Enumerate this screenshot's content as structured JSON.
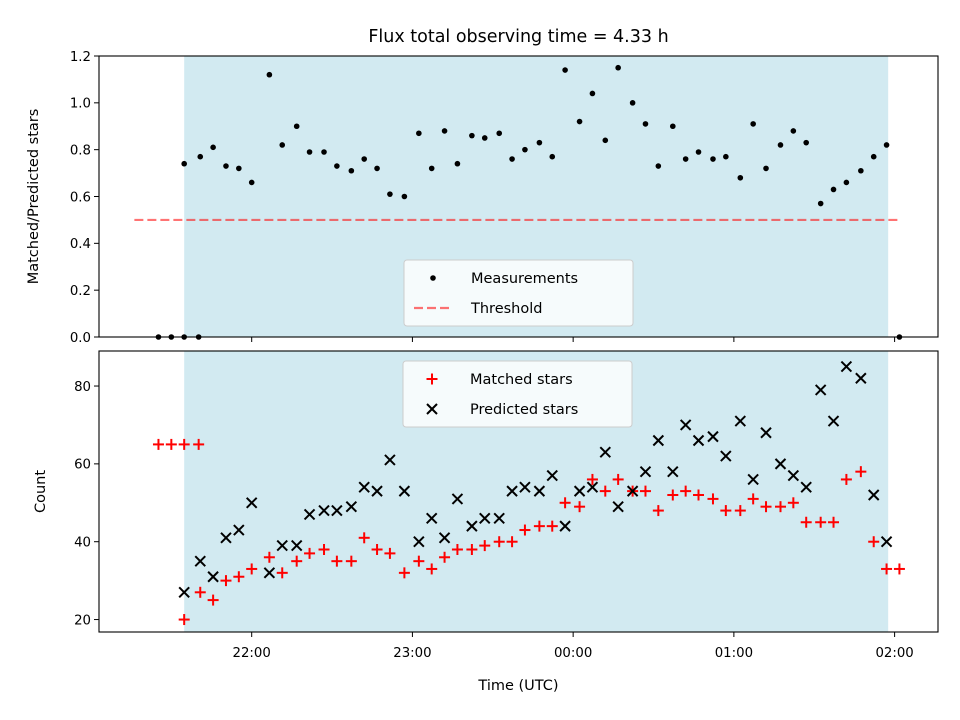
{
  "chart_data": {
    "title": "Flux total observing time = 4.33 h",
    "xlabel": "Time (UTC)",
    "x_ticks": [
      "22:00",
      "23:00",
      "00:00",
      "01:00",
      "02:00"
    ],
    "x_range_hours": [
      21.05,
      26.27
    ],
    "observing_window_hours": [
      21.58,
      25.96
    ],
    "colors": {
      "window": "#add8e6",
      "measurements": "#000000",
      "threshold": "#ff0000",
      "matched": "#ff0000",
      "predicted": "#000000"
    },
    "panels": [
      {
        "type": "scatter",
        "ylabel": "Matched/Predicted stars",
        "ylim": [
          0,
          1.2
        ],
        "y_ticks": [
          "0.0",
          "0.2",
          "0.4",
          "0.6",
          "0.8",
          "1.0",
          "1.2"
        ],
        "legend_position": "lower-center",
        "series": [
          {
            "name": "Measurements",
            "marker": "dot",
            "x": [
              21.42,
              21.5,
              21.58,
              21.67,
              21.58,
              21.68,
              21.76,
              21.84,
              21.92,
              22.0,
              22.11,
              22.19,
              22.28,
              22.36,
              22.45,
              22.53,
              22.62,
              22.7,
              22.78,
              22.86,
              22.95,
              23.04,
              23.12,
              23.2,
              23.28,
              23.37,
              23.45,
              23.54,
              23.62,
              23.7,
              23.79,
              23.87,
              23.95,
              24.04,
              24.12,
              24.2,
              24.28,
              24.37,
              24.45,
              24.53,
              24.62,
              24.7,
              24.78,
              24.87,
              24.95,
              25.04,
              25.12,
              25.2,
              25.29,
              25.37,
              25.45,
              25.54,
              25.62,
              25.7,
              25.79,
              25.87,
              25.95,
              26.03
            ],
            "y": [
              0,
              0,
              0,
              0,
              0.74,
              0.77,
              0.81,
              0.73,
              0.72,
              0.66,
              1.12,
              0.82,
              0.9,
              0.79,
              0.79,
              0.73,
              0.71,
              0.76,
              0.72,
              0.61,
              0.6,
              0.87,
              0.72,
              0.88,
              0.74,
              0.86,
              0.85,
              0.87,
              0.76,
              0.8,
              0.83,
              0.77,
              1.14,
              0.92,
              1.04,
              0.84,
              1.15,
              1.0,
              0.91,
              0.73,
              0.9,
              0.76,
              0.79,
              0.76,
              0.77,
              0.68,
              0.91,
              0.72,
              0.82,
              0.88,
              0.83,
              0.57,
              0.63,
              0.66,
              0.71,
              0.77,
              0.82,
              0
            ]
          },
          {
            "name": "Threshold",
            "type": "line",
            "style": "dashed",
            "x": [
              21.27,
              26.02
            ],
            "y": [
              0.5,
              0.5
            ]
          }
        ]
      },
      {
        "type": "scatter",
        "ylabel": "Count",
        "ylim": [
          16.8,
          89
        ],
        "y_ticks": [
          "20",
          "40",
          "60",
          "80"
        ],
        "legend_position": "upper-center",
        "series": [
          {
            "name": "Matched stars",
            "marker": "plus",
            "x": [
              21.42,
              21.5,
              21.58,
              21.67,
              21.58,
              21.68,
              21.76,
              21.84,
              21.92,
              22.0,
              22.11,
              22.19,
              22.28,
              22.36,
              22.45,
              22.53,
              22.62,
              22.7,
              22.78,
              22.86,
              22.95,
              23.04,
              23.12,
              23.2,
              23.28,
              23.37,
              23.45,
              23.54,
              23.62,
              23.7,
              23.79,
              23.87,
              23.95,
              24.04,
              24.12,
              24.2,
              24.28,
              24.37,
              24.45,
              24.53,
              24.62,
              24.7,
              24.78,
              24.87,
              24.95,
              25.04,
              25.12,
              25.2,
              25.29,
              25.37,
              25.45,
              25.54,
              25.62,
              25.7,
              25.79,
              25.87,
              25.95,
              26.03
            ],
            "y": [
              65,
              65,
              65,
              65,
              20,
              27,
              25,
              30,
              31,
              33,
              36,
              32,
              35,
              37,
              38,
              35,
              35,
              41,
              38,
              37,
              32,
              35,
              33,
              36,
              38,
              38,
              39,
              40,
              40,
              43,
              44,
              44,
              50,
              49,
              56,
              53,
              56,
              53,
              53,
              48,
              52,
              53,
              52,
              51,
              48,
              48,
              51,
              49,
              49,
              50,
              45,
              45,
              45,
              56,
              58,
              40,
              33,
              33
            ]
          },
          {
            "name": "Predicted stars",
            "marker": "x",
            "x": [
              21.58,
              21.68,
              21.76,
              21.84,
              21.92,
              22.0,
              22.11,
              22.19,
              22.28,
              22.36,
              22.45,
              22.53,
              22.62,
              22.7,
              22.78,
              22.86,
              22.95,
              23.04,
              23.12,
              23.2,
              23.28,
              23.37,
              23.45,
              23.54,
              23.62,
              23.7,
              23.79,
              23.87,
              23.95,
              24.04,
              24.12,
              24.2,
              24.28,
              24.37,
              24.45,
              24.53,
              24.62,
              24.7,
              24.78,
              24.87,
              24.95,
              25.04,
              25.12,
              25.2,
              25.29,
              25.37,
              25.45,
              25.54,
              25.62,
              25.7,
              25.79,
              25.87,
              25.95
            ],
            "y": [
              27,
              35,
              31,
              41,
              43,
              50,
              32,
              39,
              39,
              47,
              48,
              48,
              49,
              54,
              53,
              61,
              53,
              40,
              46,
              41,
              51,
              44,
              46,
              46,
              53,
              54,
              53,
              57,
              44,
              53,
              54,
              63,
              49,
              53,
              58,
              66,
              58,
              70,
              66,
              67,
              62,
              71,
              56,
              68,
              60,
              57,
              54,
              79,
              71,
              85,
              82,
              52,
              40
            ]
          }
        ]
      }
    ]
  }
}
